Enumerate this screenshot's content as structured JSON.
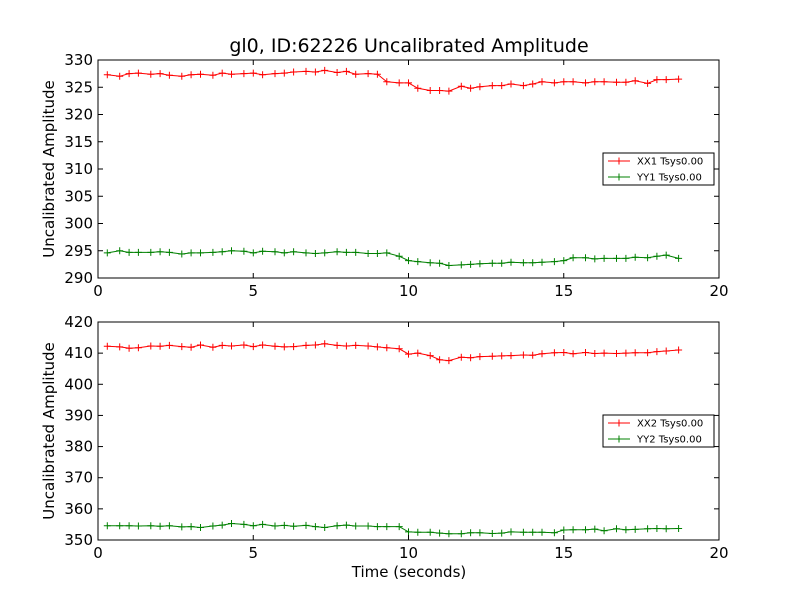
{
  "chart_data": [
    {
      "type": "line",
      "title": "gl0, ID:62226 Uncalibrated Amplitude",
      "xlabel": "",
      "ylabel": "Uncalibrated Amplitude",
      "xlim": [
        0,
        20
      ],
      "ylim": [
        290,
        330
      ],
      "xticks": [
        0,
        5,
        10,
        15,
        20
      ],
      "yticks": [
        290,
        295,
        300,
        305,
        310,
        315,
        320,
        325,
        330
      ],
      "legend_position": "center-right",
      "series": [
        {
          "name": "XX1 Tsys0.00",
          "color": "#ff0000",
          "x": [
            0.3,
            0.7,
            1.0,
            1.3,
            1.7,
            2.0,
            2.3,
            2.7,
            3.0,
            3.3,
            3.7,
            4.0,
            4.3,
            4.7,
            5.0,
            5.3,
            5.7,
            6.0,
            6.3,
            6.7,
            7.0,
            7.3,
            7.7,
            8.0,
            8.3,
            8.7,
            9.0,
            9.3,
            9.7,
            10.0,
            10.3,
            10.7,
            11.0,
            11.3,
            11.7,
            12.0,
            12.3,
            12.7,
            13.0,
            13.3,
            13.7,
            14.0,
            14.3,
            14.7,
            15.0,
            15.3,
            15.7,
            16.0,
            16.3,
            16.7,
            17.0,
            17.3,
            17.7,
            18.0,
            18.3,
            18.7
          ],
          "y": [
            327.3,
            327.0,
            327.5,
            327.6,
            327.4,
            327.5,
            327.2,
            327.0,
            327.3,
            327.4,
            327.2,
            327.6,
            327.4,
            327.5,
            327.6,
            327.3,
            327.5,
            327.6,
            327.8,
            327.9,
            327.8,
            328.1,
            327.7,
            327.9,
            327.4,
            327.5,
            327.4,
            326.0,
            325.8,
            325.8,
            324.8,
            324.4,
            324.4,
            324.3,
            325.2,
            324.8,
            325.1,
            325.3,
            325.3,
            325.6,
            325.3,
            325.6,
            326.0,
            325.8,
            326.0,
            326.0,
            325.8,
            326.0,
            326.0,
            325.9,
            325.9,
            326.2,
            325.7,
            326.4,
            326.4,
            326.5
          ]
        },
        {
          "name": "YY1 Tsys0.00",
          "color": "#008000",
          "x": [
            0.3,
            0.7,
            1.0,
            1.3,
            1.7,
            2.0,
            2.3,
            2.7,
            3.0,
            3.3,
            3.7,
            4.0,
            4.3,
            4.7,
            5.0,
            5.3,
            5.7,
            6.0,
            6.3,
            6.7,
            7.0,
            7.3,
            7.7,
            8.0,
            8.3,
            8.7,
            9.0,
            9.3,
            9.7,
            10.0,
            10.3,
            10.7,
            11.0,
            11.3,
            11.7,
            12.0,
            12.3,
            12.7,
            13.0,
            13.3,
            13.7,
            14.0,
            14.3,
            14.7,
            15.0,
            15.3,
            15.7,
            16.0,
            16.3,
            16.7,
            17.0,
            17.3,
            17.7,
            18.0,
            18.3,
            18.7
          ],
          "y": [
            294.6,
            295.0,
            294.7,
            294.7,
            294.7,
            294.8,
            294.7,
            294.4,
            294.6,
            294.6,
            294.7,
            294.8,
            295.0,
            294.9,
            294.6,
            294.9,
            294.8,
            294.6,
            294.8,
            294.6,
            294.5,
            294.6,
            294.8,
            294.7,
            294.7,
            294.5,
            294.5,
            294.6,
            294.0,
            293.2,
            293.0,
            292.8,
            292.7,
            292.3,
            292.4,
            292.5,
            292.6,
            292.7,
            292.7,
            292.9,
            292.8,
            292.8,
            292.9,
            293.0,
            293.2,
            293.7,
            293.7,
            293.5,
            293.6,
            293.6,
            293.6,
            293.8,
            293.7,
            294.0,
            294.2,
            293.6
          ]
        }
      ]
    },
    {
      "type": "line",
      "title": "",
      "xlabel": "Time (seconds)",
      "ylabel": "Uncalibrated Amplitude",
      "xlim": [
        0,
        20
      ],
      "ylim": [
        350,
        420
      ],
      "xticks": [
        0,
        5,
        10,
        15,
        20
      ],
      "yticks": [
        350,
        360,
        370,
        380,
        390,
        400,
        410,
        420
      ],
      "legend_position": "center-right",
      "series": [
        {
          "name": "XX2 Tsys0.00",
          "color": "#ff0000",
          "x": [
            0.3,
            0.7,
            1.0,
            1.3,
            1.7,
            2.0,
            2.3,
            2.7,
            3.0,
            3.3,
            3.7,
            4.0,
            4.3,
            4.7,
            5.0,
            5.3,
            5.7,
            6.0,
            6.3,
            6.7,
            7.0,
            7.3,
            7.7,
            8.0,
            8.3,
            8.7,
            9.0,
            9.3,
            9.7,
            10.0,
            10.3,
            10.7,
            11.0,
            11.3,
            11.7,
            12.0,
            12.3,
            12.7,
            13.0,
            13.3,
            13.7,
            14.0,
            14.3,
            14.7,
            15.0,
            15.3,
            15.7,
            16.0,
            16.3,
            16.7,
            17.0,
            17.3,
            17.7,
            18.0,
            18.3,
            18.7
          ],
          "y": [
            412.2,
            412.0,
            411.6,
            411.7,
            412.3,
            412.2,
            412.5,
            412.1,
            411.9,
            412.6,
            411.9,
            412.5,
            412.3,
            412.6,
            412.1,
            412.6,
            412.2,
            412.0,
            412.1,
            412.5,
            412.6,
            413.0,
            412.5,
            412.3,
            412.5,
            412.3,
            412.0,
            411.7,
            411.4,
            409.7,
            410.0,
            409.2,
            407.9,
            407.6,
            408.7,
            408.5,
            408.9,
            409.0,
            409.1,
            409.2,
            409.4,
            409.3,
            409.8,
            410.1,
            410.2,
            409.8,
            410.2,
            409.9,
            410.0,
            409.9,
            410.0,
            410.1,
            410.1,
            410.5,
            410.7,
            411.0
          ]
        },
        {
          "name": "YY2 Tsys0.00",
          "color": "#008000",
          "x": [
            0.3,
            0.7,
            1.0,
            1.3,
            1.7,
            2.0,
            2.3,
            2.7,
            3.0,
            3.3,
            3.7,
            4.0,
            4.3,
            4.7,
            5.0,
            5.3,
            5.7,
            6.0,
            6.3,
            6.7,
            7.0,
            7.3,
            7.7,
            8.0,
            8.3,
            8.7,
            9.0,
            9.3,
            9.7,
            10.0,
            10.3,
            10.7,
            11.0,
            11.3,
            11.7,
            12.0,
            12.3,
            12.7,
            13.0,
            13.3,
            13.7,
            14.0,
            14.3,
            14.7,
            15.0,
            15.3,
            15.7,
            16.0,
            16.3,
            16.7,
            17.0,
            17.3,
            17.7,
            18.0,
            18.3,
            18.7
          ],
          "y": [
            354.6,
            354.6,
            354.6,
            354.5,
            354.6,
            354.4,
            354.6,
            354.2,
            354.3,
            354.0,
            354.5,
            354.8,
            355.3,
            355.0,
            354.6,
            355.0,
            354.5,
            354.7,
            354.4,
            354.7,
            354.3,
            354.0,
            354.6,
            354.8,
            354.5,
            354.5,
            354.3,
            354.3,
            354.3,
            352.6,
            352.5,
            352.5,
            352.2,
            352.0,
            352.0,
            352.3,
            352.3,
            352.1,
            352.2,
            352.6,
            352.5,
            352.5,
            352.5,
            352.3,
            353.2,
            353.3,
            353.3,
            353.5,
            353.0,
            353.6,
            353.3,
            353.4,
            353.6,
            353.7,
            353.6,
            353.7
          ]
        }
      ]
    }
  ]
}
